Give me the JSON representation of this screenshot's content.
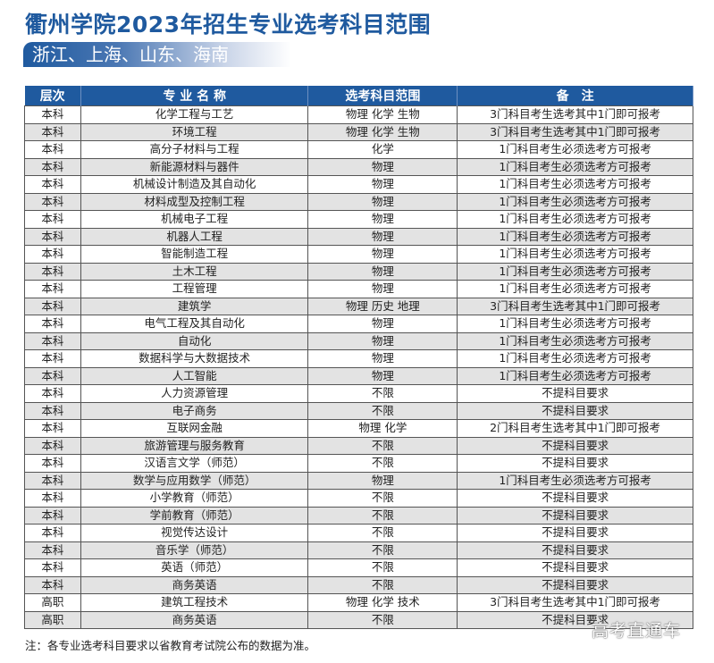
{
  "title": "衢州学院2023年招生专业选考科目范围",
  "subtitle": "浙江、上海、山东、海南",
  "table": {
    "headers": [
      "层次",
      "专 业 名 称",
      "选考科目范围",
      "备　注"
    ],
    "rows": [
      [
        "本科",
        "化学工程与工艺",
        "物理 化学 生物",
        "3门科目考生选考其中1门即可报考"
      ],
      [
        "本科",
        "环境工程",
        "物理 化学 生物",
        "3门科目考生选考其中1门即可报考"
      ],
      [
        "本科",
        "高分子材料与工程",
        "化学",
        "1门科目考生必须选考方可报考"
      ],
      [
        "本科",
        "新能源材料与器件",
        "物理",
        "1门科目考生必须选考方可报考"
      ],
      [
        "本科",
        "机械设计制造及其自动化",
        "物理",
        "1门科目考生必须选考方可报考"
      ],
      [
        "本科",
        "材料成型及控制工程",
        "物理",
        "1门科目考生必须选考方可报考"
      ],
      [
        "本科",
        "机械电子工程",
        "物理",
        "1门科目考生必须选考方可报考"
      ],
      [
        "本科",
        "机器人工程",
        "物理",
        "1门科目考生必须选考方可报考"
      ],
      [
        "本科",
        "智能制造工程",
        "物理",
        "1门科目考生必须选考方可报考"
      ],
      [
        "本科",
        "土木工程",
        "物理",
        "1门科目考生必须选考方可报考"
      ],
      [
        "本科",
        "工程管理",
        "物理",
        "1门科目考生必须选考方可报考"
      ],
      [
        "本科",
        "建筑学",
        "物理 历史 地理",
        "3门科目考生选考其中1门即可报考"
      ],
      [
        "本科",
        "电气工程及其自动化",
        "物理",
        "1门科目考生必须选考方可报考"
      ],
      [
        "本科",
        "自动化",
        "物理",
        "1门科目考生必须选考方可报考"
      ],
      [
        "本科",
        "数据科学与大数据技术",
        "物理",
        "1门科目考生必须选考方可报考"
      ],
      [
        "本科",
        "人工智能",
        "物理",
        "1门科目考生必须选考方可报考"
      ],
      [
        "本科",
        "人力资源管理",
        "不限",
        "不提科目要求"
      ],
      [
        "本科",
        "电子商务",
        "不限",
        "不提科目要求"
      ],
      [
        "本科",
        "互联网金融",
        "物理 化学",
        "2门科目考生选考其中1门即可报考"
      ],
      [
        "本科",
        "旅游管理与服务教育",
        "不限",
        "不提科目要求"
      ],
      [
        "本科",
        "汉语言文学（师范）",
        "不限",
        "不提科目要求"
      ],
      [
        "本科",
        "数学与应用数学（师范）",
        "物理",
        "1门科目考生必须选考方可报考"
      ],
      [
        "本科",
        "小学教育（师范）",
        "不限",
        "不提科目要求"
      ],
      [
        "本科",
        "学前教育（师范）",
        "不限",
        "不提科目要求"
      ],
      [
        "本科",
        "视觉传达设计",
        "不限",
        "不提科目要求"
      ],
      [
        "本科",
        "音乐学（师范）",
        "不限",
        "不提科目要求"
      ],
      [
        "本科",
        "英语（师范）",
        "不限",
        "不提科目要求"
      ],
      [
        "本科",
        "商务英语",
        "不限",
        "不提科目要求"
      ],
      [
        "高职",
        "建筑工程技术",
        "物理 化学 技术",
        "3门科目考生选考其中1门即可报考"
      ],
      [
        "高职",
        "商务英语",
        "不限",
        "不提科目要求"
      ]
    ]
  },
  "note": "注：各专业选考科目要求以省教育考试院公布的数据为准。",
  "watermark": "高考直通车",
  "colors": {
    "accent": "#1f5a9f",
    "alt_row": "#e3e3e3"
  }
}
